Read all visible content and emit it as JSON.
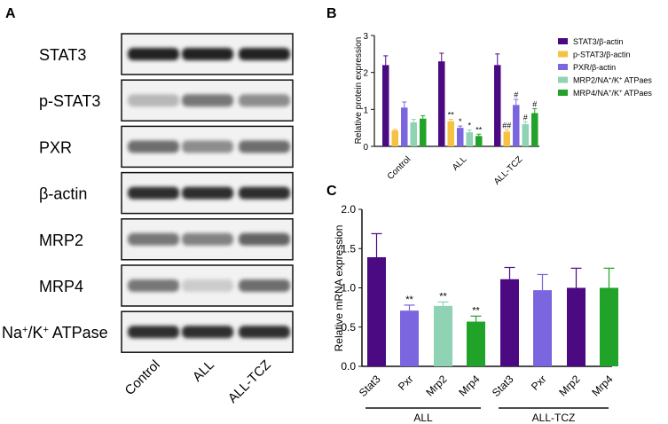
{
  "panels": {
    "a": "A",
    "b": "B",
    "c": "C"
  },
  "blot": {
    "rows": [
      {
        "label": "STAT3",
        "label_prefix": "",
        "label_sup1": "",
        "label_mid": "",
        "label_sup2": "",
        "label_suffix": "",
        "intensity": [
          0.95,
          0.95,
          0.95
        ]
      },
      {
        "label": "p-STAT3",
        "label_prefix": "",
        "label_sup1": "",
        "label_mid": "",
        "label_sup2": "",
        "label_suffix": "",
        "intensity": [
          0.25,
          0.55,
          0.45
        ]
      },
      {
        "label": "PXR",
        "label_prefix": "",
        "label_sup1": "",
        "label_mid": "",
        "label_sup2": "",
        "label_suffix": "",
        "intensity": [
          0.6,
          0.45,
          0.6
        ]
      },
      {
        "label": "β-actin",
        "label_prefix": "",
        "label_sup1": "",
        "label_mid": "",
        "label_sup2": "",
        "label_suffix": "",
        "intensity": [
          0.9,
          0.9,
          0.9
        ]
      },
      {
        "label": "MRP2",
        "label_prefix": "",
        "label_sup1": "",
        "label_mid": "",
        "label_sup2": "",
        "label_suffix": "",
        "intensity": [
          0.55,
          0.5,
          0.65
        ]
      },
      {
        "label": "MRP4",
        "label_prefix": "",
        "label_sup1": "",
        "label_mid": "",
        "label_sup2": "",
        "label_suffix": "",
        "intensity": [
          0.55,
          0.15,
          0.6
        ]
      },
      {
        "label": "",
        "label_prefix": "Na",
        "label_sup1": "+",
        "label_mid": "/K",
        "label_sup2": "+",
        "label_suffix": " ATPase",
        "intensity": [
          0.9,
          0.9,
          0.9
        ]
      }
    ],
    "lanes": [
      "Control",
      "ALL",
      "ALL-TCZ"
    ]
  },
  "chart_data": [
    {
      "panel": "B",
      "type": "bar",
      "ylabel": "Relative protein expression",
      "ylim": [
        0,
        3
      ],
      "yticks": [
        "0",
        "1",
        "2",
        "3"
      ],
      "categories": [
        "Control",
        "ALL",
        "ALL-TCZ"
      ],
      "legend_position": "right",
      "series": [
        {
          "name": "STAT3/β-actin",
          "color": "#4b0a82",
          "values": [
            2.2,
            2.3,
            2.2
          ],
          "errors": [
            0.25,
            0.22,
            0.3
          ],
          "marks": [
            "",
            "",
            ""
          ]
        },
        {
          "name": "p-STAT3/β-actin",
          "color": "#f6c244",
          "values": [
            0.43,
            0.68,
            0.4
          ],
          "errors": [
            0.03,
            0.05,
            0.05
          ],
          "marks": [
            "",
            "**",
            "##"
          ]
        },
        {
          "name": "PXR/β-actin",
          "color": "#7b66e0",
          "values": [
            1.05,
            0.5,
            1.12
          ],
          "errors": [
            0.15,
            0.05,
            0.15
          ],
          "marks": [
            "",
            "*",
            "#"
          ]
        },
        {
          "name": "MRP2/NA+/K+ ATPaes",
          "color": "#8fd3b4",
          "values": [
            0.65,
            0.38,
            0.6
          ],
          "errors": [
            0.08,
            0.06,
            0.06
          ],
          "marks": [
            "",
            "*",
            "#"
          ]
        },
        {
          "name": "MRP4/NA+/K+ ATPaes",
          "color": "#21a329",
          "values": [
            0.75,
            0.28,
            0.9
          ],
          "errors": [
            0.08,
            0.05,
            0.12
          ],
          "marks": [
            "",
            "**",
            "#"
          ]
        }
      ]
    },
    {
      "panel": "C",
      "type": "bar",
      "ylabel": "Relative mRNA expression",
      "ylim": [
        0,
        2.0
      ],
      "yticks": [
        "0.0",
        "0.5",
        "1.0",
        "1.5",
        "2.0"
      ],
      "groups": [
        "ALL",
        "ALL-TCZ"
      ],
      "categories": [
        "Stat3",
        "Pxr",
        "Mrp2",
        "Mrp4",
        "Stat3",
        "Pxr",
        "Mrp2",
        "Mrp4"
      ],
      "values": [
        1.39,
        0.71,
        0.77,
        0.57,
        1.11,
        0.97,
        1.0,
        1.0
      ],
      "errors": [
        0.3,
        0.07,
        0.05,
        0.07,
        0.15,
        0.2,
        0.25,
        0.25
      ],
      "colors": [
        "#4b0a82",
        "#7b66e0",
        "#8fd3b4",
        "#21a329",
        "#4b0a82",
        "#7b66e0",
        "#4b0a82",
        "#21a329"
      ],
      "marks": [
        "",
        "**",
        "**",
        "**",
        "",
        "",
        "",
        ""
      ]
    }
  ]
}
